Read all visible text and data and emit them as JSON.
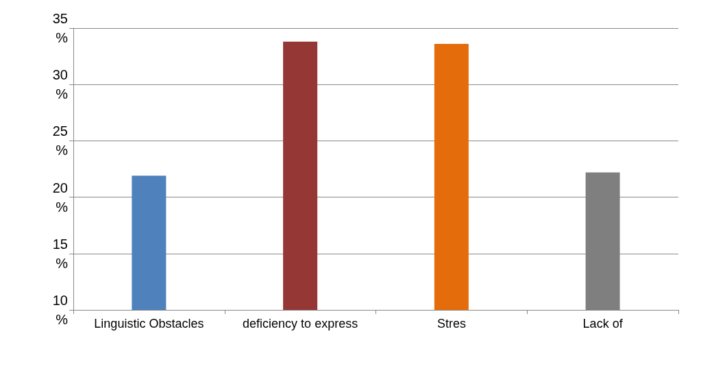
{
  "chart_data": {
    "type": "bar",
    "categories": [
      "Linguistic Obstacles",
      "deficiency to express",
      "Stres",
      "Lack of"
    ],
    "values": [
      21.9,
      33.8,
      33.6,
      22.2
    ],
    "colors": [
      "#4f81bd",
      "#953735",
      "#e46c0a",
      "#7f7f7f"
    ],
    "ylim": [
      10,
      35
    ],
    "yticks": [
      {
        "value": 10,
        "label": "10 %"
      },
      {
        "value": 15,
        "label": "15 %"
      },
      {
        "value": 20,
        "label": "20 %"
      },
      {
        "value": 25,
        "label": "25 %"
      },
      {
        "value": 30,
        "label": "30 %"
      },
      {
        "value": 35,
        "label": "35 %"
      }
    ],
    "grid": true
  }
}
